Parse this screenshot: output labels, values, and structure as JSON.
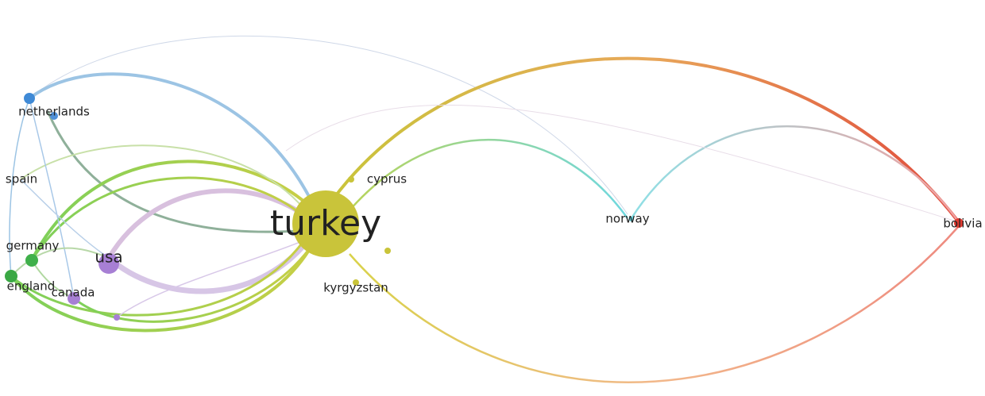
{
  "nodes": [
    {
      "label": "turkey"
    },
    {
      "label": "netherlands"
    },
    {
      "label": "spain"
    },
    {
      "label": "germany"
    },
    {
      "label": "england"
    },
    {
      "label": "usa"
    },
    {
      "label": "canada"
    },
    {
      "label": "cyprus"
    },
    {
      "label": "norway"
    },
    {
      "label": "bolivia"
    },
    {
      "label": "kyrgyzstan"
    }
  ]
}
